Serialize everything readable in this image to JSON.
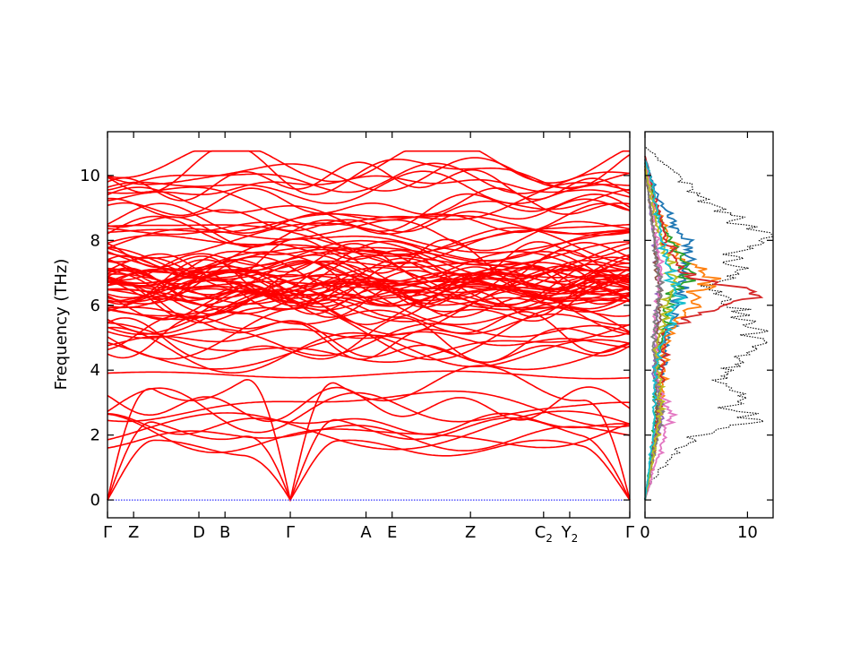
{
  "chart_data": [
    {
      "type": "line",
      "title": "",
      "xlabel": "",
      "ylabel": "Frequency (THz)",
      "ylim": [
        -0.55,
        11.35
      ],
      "yticks": [
        0,
        2,
        4,
        6,
        8,
        10
      ],
      "grid": false,
      "legend": "none",
      "x_ticks": [
        {
          "label": "Γ",
          "sub": "",
          "pos": 0.0
        },
        {
          "label": "Z",
          "sub": "",
          "pos": 0.5
        },
        {
          "label": "D",
          "sub": "",
          "pos": 1.75
        },
        {
          "label": "B",
          "sub": "",
          "pos": 2.25
        },
        {
          "label": "Γ",
          "sub": "",
          "pos": 3.5
        },
        {
          "label": "A",
          "sub": "",
          "pos": 4.95
        },
        {
          "label": "E",
          "sub": "",
          "pos": 5.45
        },
        {
          "label": "Z",
          "sub": "",
          "pos": 6.95
        },
        {
          "label": "C",
          "sub": "2",
          "pos": 8.35
        },
        {
          "label": "Y",
          "sub": "2",
          "pos": 8.85
        },
        {
          "label": "Γ",
          "sub": "",
          "pos": 10.0
        }
      ],
      "zero_line_color": "#0000ff",
      "band_color": "#ff0000",
      "n_bands": 84,
      "acoustic_gamma_points": [
        0.0,
        3.5,
        10.0
      ]
    },
    {
      "type": "line",
      "title": "",
      "xlabel": "",
      "ylabel": "",
      "xlim": [
        0,
        12.5
      ],
      "xticks": [
        0,
        10
      ],
      "ylim": [
        -0.55,
        11.35
      ],
      "grid": false,
      "legend": "none",
      "total_dos_color": "#000000",
      "total_dos": [
        {
          "y": 0.0,
          "x": 0.0
        },
        {
          "y": 0.5,
          "x": 0.5
        },
        {
          "y": 1.0,
          "x": 1.6
        },
        {
          "y": 1.5,
          "x": 3.0
        },
        {
          "y": 2.0,
          "x": 5.5
        },
        {
          "y": 2.3,
          "x": 8.0
        },
        {
          "y": 2.5,
          "x": 11.5
        },
        {
          "y": 2.7,
          "x": 9.0
        },
        {
          "y": 3.0,
          "x": 8.5
        },
        {
          "y": 3.3,
          "x": 9.5
        },
        {
          "y": 3.6,
          "x": 7.0
        },
        {
          "y": 4.0,
          "x": 8.5
        },
        {
          "y": 4.4,
          "x": 9.5
        },
        {
          "y": 4.8,
          "x": 12.0
        },
        {
          "y": 5.2,
          "x": 11.0
        },
        {
          "y": 5.6,
          "x": 10.0
        },
        {
          "y": 6.0,
          "x": 8.0
        },
        {
          "y": 6.3,
          "x": 7.5
        },
        {
          "y": 6.6,
          "x": 6.0
        },
        {
          "y": 7.0,
          "x": 9.0
        },
        {
          "y": 7.4,
          "x": 8.5
        },
        {
          "y": 7.8,
          "x": 10.0
        },
        {
          "y": 8.1,
          "x": 12.0
        },
        {
          "y": 8.5,
          "x": 9.5
        },
        {
          "y": 9.0,
          "x": 7.5
        },
        {
          "y": 9.4,
          "x": 5.5
        },
        {
          "y": 9.8,
          "x": 4.0
        },
        {
          "y": 10.2,
          "x": 2.5
        },
        {
          "y": 10.6,
          "x": 1.0
        },
        {
          "y": 10.9,
          "x": 0.0
        }
      ],
      "pdos_series": [
        {
          "color": "#1f77b4",
          "points": [
            {
              "y": 0.0,
              "x": 0
            },
            {
              "y": 2.5,
              "x": 1.2
            },
            {
              "y": 4.5,
              "x": 1.8
            },
            {
              "y": 6.6,
              "x": 3.5
            },
            {
              "y": 7.8,
              "x": 4.5
            },
            {
              "y": 9.3,
              "x": 1.2
            },
            {
              "y": 10.6,
              "x": 0
            }
          ]
        },
        {
          "color": "#ff7f0e",
          "points": [
            {
              "y": 0.0,
              "x": 0
            },
            {
              "y": 2.5,
              "x": 1.5
            },
            {
              "y": 5.0,
              "x": 2.0
            },
            {
              "y": 6.8,
              "x": 6.5
            },
            {
              "y": 7.6,
              "x": 3.0
            },
            {
              "y": 9.0,
              "x": 1.0
            },
            {
              "y": 10.5,
              "x": 0
            }
          ]
        },
        {
          "color": "#2ca02c",
          "points": [
            {
              "y": 0.0,
              "x": 0
            },
            {
              "y": 2.3,
              "x": 1.0
            },
            {
              "y": 4.2,
              "x": 1.2
            },
            {
              "y": 6.3,
              "x": 2.5
            },
            {
              "y": 7.0,
              "x": 4.5
            },
            {
              "y": 8.5,
              "x": 1.5
            },
            {
              "y": 10.4,
              "x": 0
            }
          ]
        },
        {
          "color": "#d62728",
          "points": [
            {
              "y": 0.0,
              "x": 0
            },
            {
              "y": 2.5,
              "x": 1.3
            },
            {
              "y": 5.3,
              "x": 2.0
            },
            {
              "y": 6.4,
              "x": 11.0
            },
            {
              "y": 6.9,
              "x": 4.0
            },
            {
              "y": 8.0,
              "x": 2.0
            },
            {
              "y": 10.6,
              "x": 0
            }
          ]
        },
        {
          "color": "#9467bd",
          "points": [
            {
              "y": 0.0,
              "x": 0
            },
            {
              "y": 1.8,
              "x": 1.0
            },
            {
              "y": 2.6,
              "x": 1.8
            },
            {
              "y": 4.0,
              "x": 0.8
            },
            {
              "y": 6.5,
              "x": 1.5
            },
            {
              "y": 9.0,
              "x": 0.5
            },
            {
              "y": 10.3,
              "x": 0
            }
          ]
        },
        {
          "color": "#8c564b",
          "points": [
            {
              "y": 0.0,
              "x": 0
            },
            {
              "y": 2.2,
              "x": 1.2
            },
            {
              "y": 3.8,
              "x": 1.0
            },
            {
              "y": 5.8,
              "x": 1.5
            },
            {
              "y": 8.0,
              "x": 1.0
            },
            {
              "y": 10.2,
              "x": 0
            }
          ]
        },
        {
          "color": "#e377c2",
          "points": [
            {
              "y": 0.0,
              "x": 0
            },
            {
              "y": 2.7,
              "x": 2.5
            },
            {
              "y": 3.5,
              "x": 1.2
            },
            {
              "y": 5.5,
              "x": 1.0
            },
            {
              "y": 7.2,
              "x": 1.5
            },
            {
              "y": 9.5,
              "x": 0.6
            },
            {
              "y": 10.5,
              "x": 0
            }
          ]
        },
        {
          "color": "#7f7f7f",
          "points": [
            {
              "y": 0.0,
              "x": 0
            },
            {
              "y": 2.4,
              "x": 1.5
            },
            {
              "y": 4.8,
              "x": 0.8
            },
            {
              "y": 6.6,
              "x": 1.5
            },
            {
              "y": 8.8,
              "x": 0.6
            },
            {
              "y": 10.4,
              "x": 0
            }
          ]
        },
        {
          "color": "#bcbd22",
          "points": [
            {
              "y": 0.0,
              "x": 0
            },
            {
              "y": 2.8,
              "x": 1.6
            },
            {
              "y": 4.6,
              "x": 1.1
            },
            {
              "y": 6.8,
              "x": 2.8
            },
            {
              "y": 8.4,
              "x": 1.2
            },
            {
              "y": 10.3,
              "x": 0
            }
          ]
        },
        {
          "color": "#17becf",
          "points": [
            {
              "y": 0.0,
              "x": 0
            },
            {
              "y": 2.0,
              "x": 0.8
            },
            {
              "y": 4.1,
              "x": 1.0
            },
            {
              "y": 6.2,
              "x": 3.2
            },
            {
              "y": 7.5,
              "x": 2.0
            },
            {
              "y": 9.8,
              "x": 0.7
            },
            {
              "y": 10.5,
              "x": 0
            }
          ]
        }
      ]
    }
  ]
}
